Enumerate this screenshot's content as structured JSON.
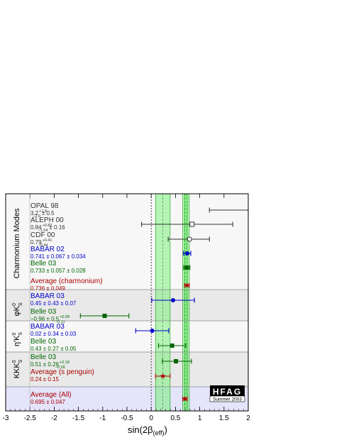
{
  "chart_data": {
    "type": "scatter",
    "xlabel": "sin(2β",
    "xlabel_sub": "(eff)",
    "xlabel_close": ")",
    "xlim": [
      -3,
      2
    ],
    "x_ticks": [
      -3,
      -2.5,
      -2,
      -1.5,
      -1,
      -0.5,
      0,
      0.5,
      1,
      1.5,
      2
    ],
    "x_tick_labels": [
      "-3",
      "-2.5",
      "-2",
      "-1.5",
      "-1",
      "-0.5",
      "0",
      "0.5",
      "1",
      "1.5",
      "2"
    ],
    "bands": [
      {
        "name": "charmonium",
        "center": 0.736,
        "low": 0.687,
        "high": 0.785,
        "color": "#66ee66"
      },
      {
        "name": "all",
        "center": 0.695,
        "low": 0.648,
        "high": 0.742,
        "color": "#66ee66"
      },
      {
        "name": "s penguin",
        "center": 0.24,
        "low": 0.09,
        "high": 0.39,
        "color": "#66ee66"
      }
    ],
    "sections": [
      {
        "name": "Charmonium Modes",
        "bg": "#f7f7f7"
      },
      {
        "name": "φK",
        "bg": "#e9e9e9"
      },
      {
        "name": "η'K",
        "bg": "#f7f7f7"
      },
      {
        "name": "KKK",
        "bg": "#e9e9e9"
      },
      {
        "name": "",
        "bg": "#e4e4fa"
      }
    ],
    "section_labels": {
      "charmonium": "Charmonium Modes",
      "phik_a": "φK",
      "phik_b": "0",
      "phik_c": "S",
      "etak_a": "η′K",
      "etak_b": "0",
      "etak_c": "S",
      "kkk_a": "KKK",
      "kkk_b": "0",
      "kkk_c": "S"
    },
    "points": [
      {
        "name": "OPAL 98",
        "section": 0,
        "value": 3.2,
        "low": 1.2,
        "high": 5.0,
        "color": "#333333",
        "marker": "none",
        "line1": "OPAL 98",
        "v": "3.2",
        "sup": "+1.8",
        "sub": "−2.0",
        "rest": "± 0.5"
      },
      {
        "name": "ALEPH 00",
        "section": 0,
        "value": 0.84,
        "low": -0.2,
        "high": 1.68,
        "color": "#333333",
        "marker": "open-square",
        "line1": "ALEPH 00",
        "v": "0.84",
        "sup": "+0.82",
        "sub": "−1.04",
        "rest": "± 0.16"
      },
      {
        "name": "CDF 00",
        "section": 0,
        "value": 0.79,
        "low": 0.35,
        "high": 1.2,
        "color": "#333333",
        "marker": "open-circle",
        "line1": "CDF 00",
        "v": "0.79",
        "sup": "+0.41",
        "sub": "−0.44",
        "rest": ""
      },
      {
        "name": "BABAR 02",
        "section": 0,
        "value": 0.741,
        "low": 0.666,
        "high": 0.816,
        "color": "#0000cc",
        "marker": "circle",
        "line1": "BABAR 02",
        "v": "0.741 ± 0.067 ± 0.034",
        "sup": "",
        "sub": "",
        "rest": ""
      },
      {
        "name": "Belle 03",
        "section": 0,
        "value": 0.733,
        "low": 0.669,
        "high": 0.797,
        "color": "#006600",
        "marker": "square",
        "line1": "Belle 03",
        "v": "0.733 ± 0.057 ± 0.028",
        "sup": "",
        "sub": "",
        "rest": ""
      },
      {
        "name": "Average (charmonium)",
        "section": 0,
        "value": 0.736,
        "low": 0.687,
        "high": 0.785,
        "color": "#aa0000",
        "marker": "star",
        "line1": "Average (charmonium)",
        "v": "0.736 ± 0.049",
        "sup": "",
        "sub": "",
        "rest": ""
      },
      {
        "name": "BABAR 03",
        "section": 1,
        "value": 0.45,
        "low": 0.01,
        "high": 0.89,
        "color": "#0000cc",
        "marker": "circle",
        "line1": "BABAR 03",
        "v": "0.45 ± 0.43 ± 0.07",
        "sup": "",
        "sub": "",
        "rest": ""
      },
      {
        "name": "Belle 03",
        "section": 1,
        "value": -0.96,
        "low": -1.46,
        "high": -0.46,
        "color": "#006600",
        "marker": "square",
        "line1": "Belle 03",
        "v": "−0.96 ± 0.5",
        "sup": "+0.09",
        "sub": "−0.11",
        "rest": ""
      },
      {
        "name": "BABAR 03",
        "section": 2,
        "value": 0.02,
        "low": -0.32,
        "high": 0.36,
        "color": "#0000cc",
        "marker": "circle",
        "line1": "BABAR 03",
        "v": "0.02 ± 0.34 ± 0.03",
        "sup": "",
        "sub": "",
        "rest": ""
      },
      {
        "name": "Belle 03",
        "section": 2,
        "value": 0.43,
        "low": 0.15,
        "high": 0.71,
        "color": "#006600",
        "marker": "square",
        "line1": "Belle 03",
        "v": "0.43 ± 0.27 ± 0.05",
        "sup": "",
        "sub": "",
        "rest": ""
      },
      {
        "name": "Belle 03",
        "section": 3,
        "value": 0.51,
        "low": 0.23,
        "high": 0.83,
        "color": "#006600",
        "marker": "square",
        "line1": "Belle 03",
        "v": "0.51 ± 0.26",
        "sup": "+0.18",
        "sub": "−0.00",
        "rest": ""
      },
      {
        "name": "Average (s penguin)",
        "section": 3,
        "value": 0.24,
        "low": 0.09,
        "high": 0.39,
        "color": "#aa0000",
        "marker": "star",
        "line1": "Average (s penguin)",
        "v": "0.24 ± 0.15",
        "sup": "",
        "sub": "",
        "rest": ""
      },
      {
        "name": "Average (All)",
        "section": 4,
        "value": 0.695,
        "low": 0.648,
        "high": 0.742,
        "color": "#aa0000",
        "marker": "star",
        "line1": "Average (All)",
        "v": "0.695 ± 0.047",
        "sup": "",
        "sub": "",
        "rest": ""
      }
    ],
    "reference_line": 0
  },
  "logo": {
    "text": "HFAG",
    "subtitle": "Summer 2003"
  }
}
